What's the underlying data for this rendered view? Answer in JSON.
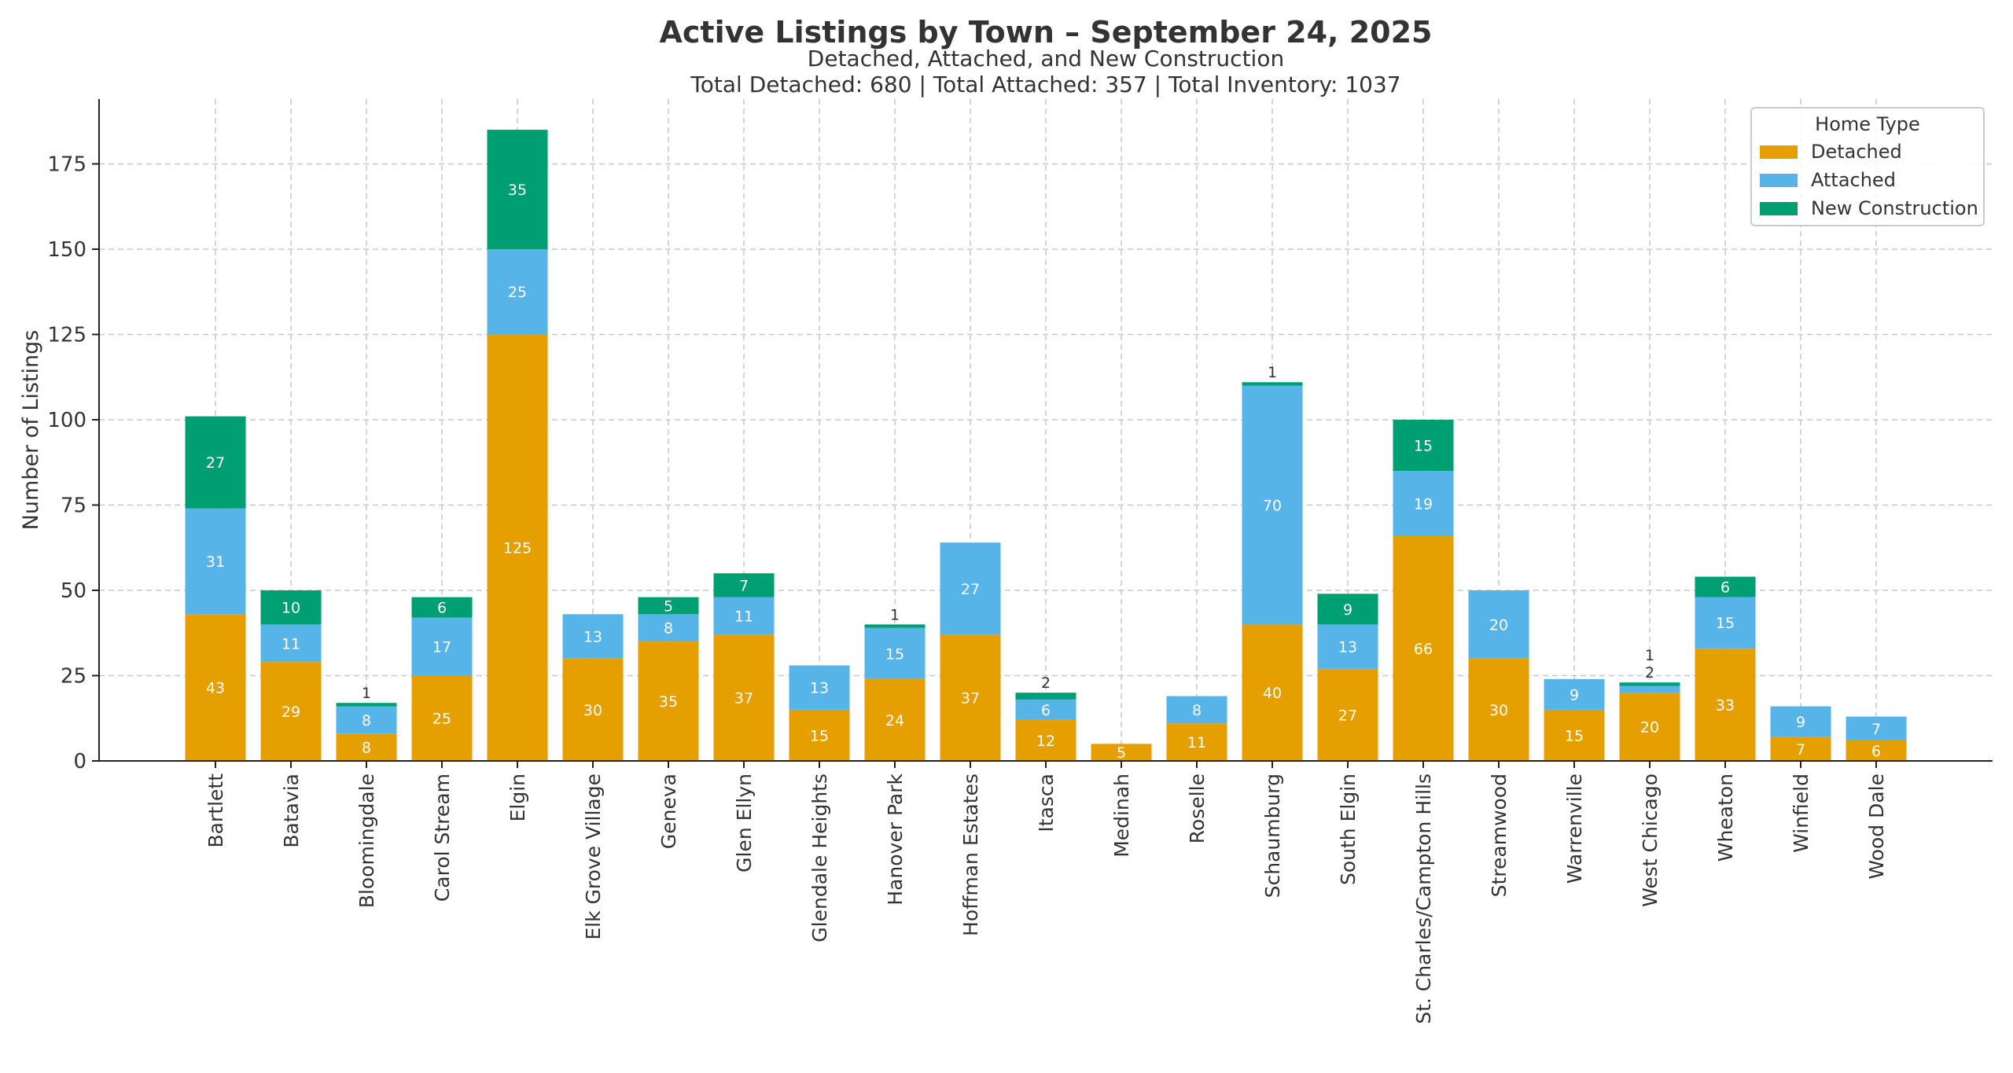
{
  "chart_data": {
    "type": "bar",
    "stacked": true,
    "title": "Active Listings by Town – September 24, 2025",
    "subtitle": "Detached, Attached, and New Construction",
    "subtitle2": "Total Detached: 680 | Total Attached: 357 | Total Inventory: 1037",
    "xlabel": "",
    "ylabel": "Number of Listings",
    "ylim": [
      0,
      194
    ],
    "yticks": [
      0,
      25,
      50,
      75,
      100,
      125,
      150,
      175
    ],
    "grid": true,
    "legend": {
      "title": "Home Type",
      "placement": "top-right"
    },
    "categories": [
      "Bartlett",
      "Batavia",
      "Bloomingdale",
      "Carol Stream",
      "Elgin",
      "Elk Grove Village",
      "Geneva",
      "Glen Ellyn",
      "Glendale Heights",
      "Hanover Park",
      "Hoffman Estates",
      "Itasca",
      "Medinah",
      "Roselle",
      "Schaumburg",
      "South Elgin",
      "St. Charles/Campton Hills",
      "Streamwood",
      "Warrenville",
      "West Chicago",
      "Wheaton",
      "Winfield",
      "Wood Dale"
    ],
    "series": [
      {
        "name": "Detached",
        "color": "#E69F00",
        "values": [
          43,
          29,
          8,
          25,
          125,
          30,
          35,
          37,
          15,
          24,
          37,
          12,
          5,
          11,
          40,
          27,
          66,
          30,
          15,
          20,
          33,
          7,
          6
        ]
      },
      {
        "name": "Attached",
        "color": "#56B4E9",
        "values": [
          31,
          11,
          8,
          17,
          25,
          13,
          8,
          11,
          13,
          15,
          27,
          6,
          0,
          8,
          70,
          13,
          19,
          20,
          9,
          2,
          15,
          9,
          7
        ]
      },
      {
        "name": "New Construction",
        "color": "#009E73",
        "values": [
          27,
          10,
          1,
          6,
          35,
          0,
          5,
          7,
          0,
          1,
          0,
          2,
          0,
          0,
          1,
          9,
          15,
          0,
          0,
          1,
          6,
          0,
          0
        ]
      }
    ]
  }
}
